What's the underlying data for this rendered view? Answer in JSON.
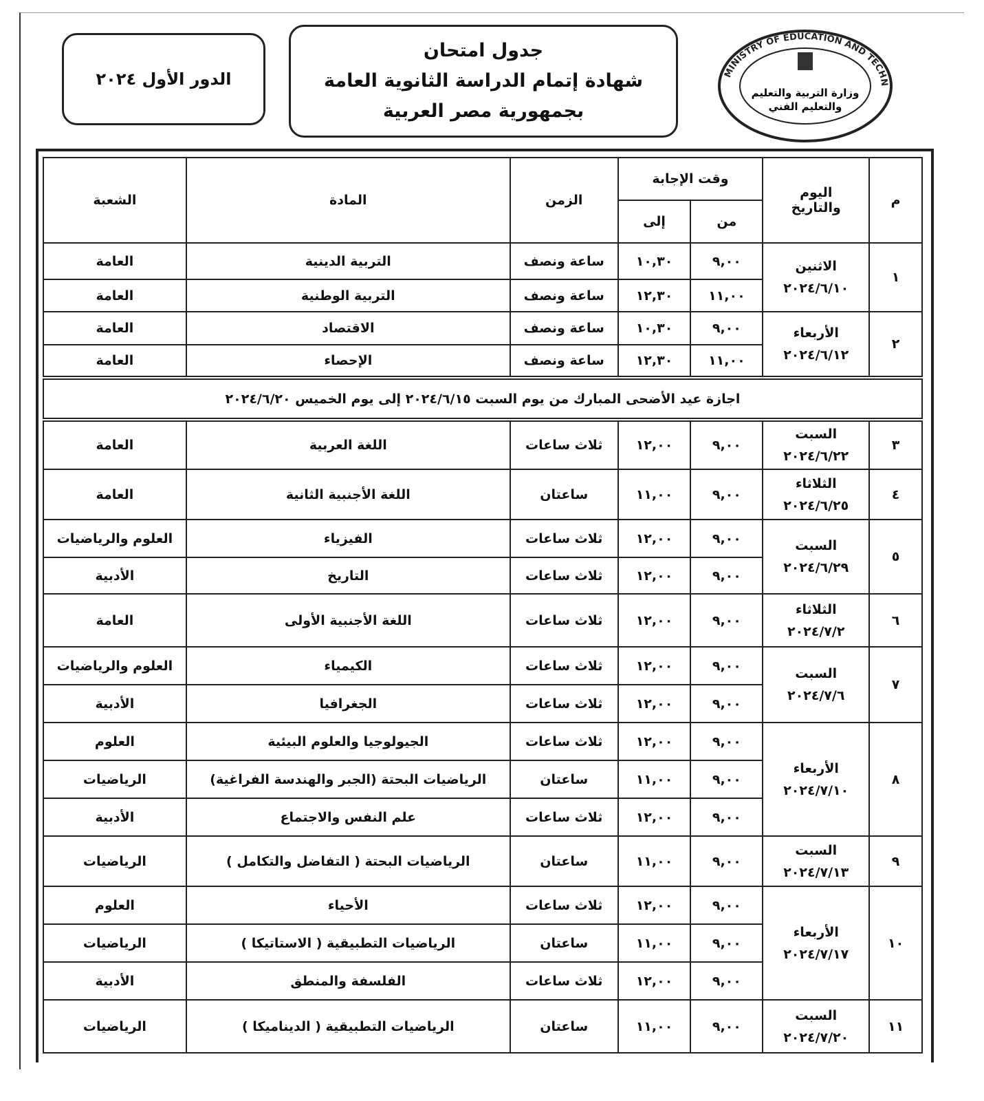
{
  "logo": {
    "text_en": "MINISTRY OF EDUCATION AND TECHNICAL EDUCATION",
    "text_ar": "وزارة التربية والتعليم والتعليم الفني"
  },
  "header": {
    "title_lines": [
      "جدول امتحان",
      "شهادة إتمام الدراسة الثانوية العامة",
      "بجمهورية مصر العربية"
    ],
    "round": "الدور الأول ٢٠٢٤"
  },
  "table": {
    "headers": {
      "num": "م",
      "day": "اليوم والتاريخ",
      "answer_time": "وقت الإجابة",
      "from": "من",
      "to": "إلى",
      "duration": "الزمن",
      "subject": "المادة",
      "branch": "الشعبة"
    },
    "holiday": "اجازة عيد الأضحى المبارك من يوم السبت ٢٠٢٤/٦/١٥ إلى يوم الخميس ٢٠٢٤/٦/٢٠",
    "days": [
      {
        "num": "١",
        "day": "الاثنين",
        "date": "٢٠٢٤/٦/١٠",
        "exams": [
          {
            "from": "٩,٠٠",
            "to": "١٠,٣٠",
            "duration": "ساعة ونصف",
            "subject": "التربية الدينية",
            "branch": "العامة"
          },
          {
            "from": "١١,٠٠",
            "to": "١٢,٣٠",
            "duration": "ساعة ونصف",
            "subject": "التربية الوطنية",
            "branch": "العامة"
          }
        ]
      },
      {
        "num": "٢",
        "day": "الأربعاء",
        "date": "٢٠٢٤/٦/١٢",
        "exams": [
          {
            "from": "٩,٠٠",
            "to": "١٠,٣٠",
            "duration": "ساعة ونصف",
            "subject": "الاقتصاد",
            "branch": "العامة"
          },
          {
            "from": "١١,٠٠",
            "to": "١٢,٣٠",
            "duration": "ساعة ونصف",
            "subject": "الإحصاء",
            "branch": "العامة"
          }
        ]
      },
      {
        "num": "٣",
        "day": "السبت",
        "date": "٢٠٢٤/٦/٢٢",
        "exams": [
          {
            "from": "٩,٠٠",
            "to": "١٢,٠٠",
            "duration": "ثلاث ساعات",
            "subject": "اللغة العربية",
            "branch": "العامة"
          }
        ]
      },
      {
        "num": "٤",
        "day": "الثلاثاء",
        "date": "٢٠٢٤/٦/٢٥",
        "exams": [
          {
            "from": "٩,٠٠",
            "to": "١١,٠٠",
            "duration": "ساعتان",
            "subject": "اللغة الأجنبية الثانية",
            "branch": "العامة"
          }
        ]
      },
      {
        "num": "٥",
        "day": "السبت",
        "date": "٢٠٢٤/٦/٢٩",
        "exams": [
          {
            "from": "٩,٠٠",
            "to": "١٢,٠٠",
            "duration": "ثلاث ساعات",
            "subject": "الفيزياء",
            "branch": "العلوم والرياضيات"
          },
          {
            "from": "٩,٠٠",
            "to": "١٢,٠٠",
            "duration": "ثلاث ساعات",
            "subject": "التاريخ",
            "branch": "الأدبية"
          }
        ]
      },
      {
        "num": "٦",
        "day": "الثلاثاء",
        "date": "٢٠٢٤/٧/٢",
        "exams": [
          {
            "from": "٩,٠٠",
            "to": "١٢,٠٠",
            "duration": "ثلاث ساعات",
            "subject": "اللغة الأجنبية الأولى",
            "branch": "العامة"
          }
        ]
      },
      {
        "num": "٧",
        "day": "السبت",
        "date": "٢٠٢٤/٧/٦",
        "exams": [
          {
            "from": "٩,٠٠",
            "to": "١٢,٠٠",
            "duration": "ثلاث ساعات",
            "subject": "الكيمياء",
            "branch": "العلوم والرياضيات"
          },
          {
            "from": "٩,٠٠",
            "to": "١٢,٠٠",
            "duration": "ثلاث ساعات",
            "subject": "الجغرافيا",
            "branch": "الأدبية"
          }
        ]
      },
      {
        "num": "٨",
        "day": "الأربعاء",
        "date": "٢٠٢٤/٧/١٠",
        "exams": [
          {
            "from": "٩,٠٠",
            "to": "١٢,٠٠",
            "duration": "ثلاث ساعات",
            "subject": "الجيولوجيا والعلوم البيئية",
            "branch": "العلوم"
          },
          {
            "from": "٩,٠٠",
            "to": "١١,٠٠",
            "duration": "ساعتان",
            "subject": "الرياضيات البحتة (الجبر والهندسة الفراغية)",
            "branch": "الرياضيات"
          },
          {
            "from": "٩,٠٠",
            "to": "١٢,٠٠",
            "duration": "ثلاث ساعات",
            "subject": "علم النفس والاجتماع",
            "branch": "الأدبية"
          }
        ]
      },
      {
        "num": "٩",
        "day": "السبت",
        "date": "٢٠٢٤/٧/١٣",
        "exams": [
          {
            "from": "٩,٠٠",
            "to": "١١,٠٠",
            "duration": "ساعتان",
            "subject": "الرياضيات البحتة ( التفاضل والتكامل )",
            "branch": "الرياضيات"
          }
        ]
      },
      {
        "num": "١٠",
        "day": "الأربعاء",
        "date": "٢٠٢٤/٧/١٧",
        "exams": [
          {
            "from": "٩,٠٠",
            "to": "١٢,٠٠",
            "duration": "ثلاث ساعات",
            "subject": "الأحياء",
            "branch": "العلوم"
          },
          {
            "from": "٩,٠٠",
            "to": "١١,٠٠",
            "duration": "ساعتان",
            "subject": "الرياضيات التطبيقية ( الاستاتيكا )",
            "branch": "الرياضيات"
          },
          {
            "from": "٩,٠٠",
            "to": "١٢,٠٠",
            "duration": "ثلاث ساعات",
            "subject": "الفلسفة والمنطق",
            "branch": "الأدبية"
          }
        ]
      },
      {
        "num": "١١",
        "day": "السبت",
        "date": "٢٠٢٤/٧/٢٠",
        "exams": [
          {
            "from": "٩,٠٠",
            "to": "١١,٠٠",
            "duration": "ساعتان",
            "subject": "الرياضيات التطبيقية ( الديناميكا )",
            "branch": "الرياضيات"
          }
        ]
      }
    ]
  }
}
